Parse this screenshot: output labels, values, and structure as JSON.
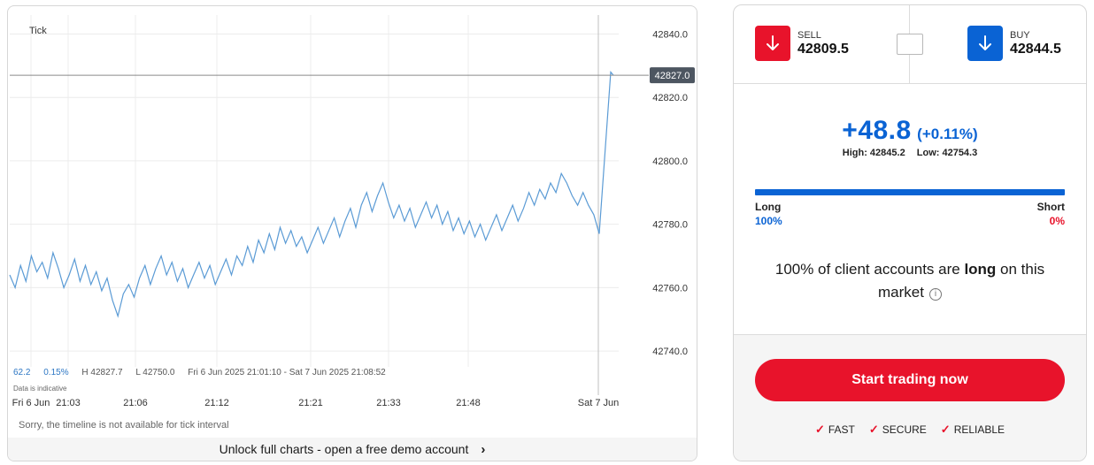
{
  "chart": {
    "interval_label": "Tick",
    "stats": {
      "change": "62.2",
      "change_pct": "0.15%",
      "high": "H 42827.7",
      "low": "L 42750.0",
      "range": "Fri 6 Jun 2025 21:01:10 - Sat 7 Jun 2025 21:08:52"
    },
    "data_note": "Data is indicative",
    "timeline_msg": "Sorry, the timeline is not available for tick interval",
    "unlock_text": "Unlock full charts - open a free demo account",
    "current_price_tag": "42827.0",
    "colors": {
      "line": "#5b9bd5",
      "price_tag_bg": "#4d5661"
    }
  },
  "chart_data": {
    "type": "line",
    "title": "",
    "xlabel": "",
    "ylabel": "",
    "ylim": [
      42735,
      42846
    ],
    "y_ticks": [
      "42840.0",
      "42820.0",
      "42800.0",
      "42780.0",
      "42760.0",
      "42740.0"
    ],
    "x_tick_labels": [
      "Fri 6 Jun",
      "21:03",
      "21:06",
      "21:12",
      "21:21",
      "21:33",
      "21:48",
      "Sat 7 Jun"
    ],
    "grid": true,
    "series": [
      {
        "values": [
          42764,
          42760,
          42767,
          42762,
          42770,
          42765,
          42768,
          42763,
          42771,
          42766,
          42760,
          42764,
          42769,
          42762,
          42767,
          42761,
          42765,
          42759,
          42763,
          42756,
          42751,
          42758,
          42761,
          42757,
          42763,
          42767,
          42761,
          42766,
          42770,
          42764,
          42768,
          42762,
          42766,
          42760,
          42764,
          42768,
          42763,
          42767,
          42761,
          42765,
          42769,
          42764,
          42770,
          42767,
          42773,
          42768,
          42775,
          42771,
          42777,
          42772,
          42779,
          42774,
          42778,
          42773,
          42776,
          42771,
          42775,
          42779,
          42774,
          42778,
          42782,
          42776,
          42781,
          42785,
          42779,
          42786,
          42790,
          42784,
          42789,
          42793,
          42787,
          42782,
          42786,
          42781,
          42785,
          42779,
          42783,
          42787,
          42782,
          42786,
          42780,
          42784,
          42778,
          42782,
          42777,
          42781,
          42776,
          42780,
          42775,
          42779,
          42783,
          42778,
          42782,
          42786,
          42781,
          42785,
          42790,
          42786,
          42791,
          42788,
          42793,
          42790,
          42796,
          42793,
          42789,
          42786,
          42790,
          42786,
          42783,
          42777,
          42828,
          42827
        ]
      }
    ]
  },
  "panel": {
    "sell_label": "SELL",
    "sell_price": "42809.5",
    "buy_label": "BUY",
    "buy_price": "42844.5",
    "change": "+48.8",
    "change_pct": "(+0.11%)",
    "high": "High: 42845.2",
    "low": "Low: 42754.3",
    "long_label": "Long",
    "short_label": "Short",
    "long_pct": "100%",
    "short_pct": "0%",
    "long_fraction": 1.0,
    "client_prefix": "100% of client accounts are ",
    "client_emph": "long",
    "client_suffix": " on this market",
    "info_icon": "i",
    "start_button": "Start trading now",
    "features": [
      "FAST",
      "SECURE",
      "RELIABLE"
    ],
    "colors": {
      "sell": "#e8132b",
      "buy": "#0a63d4",
      "accent_blue": "#0a63d4",
      "accent_red": "#e8132b"
    }
  }
}
